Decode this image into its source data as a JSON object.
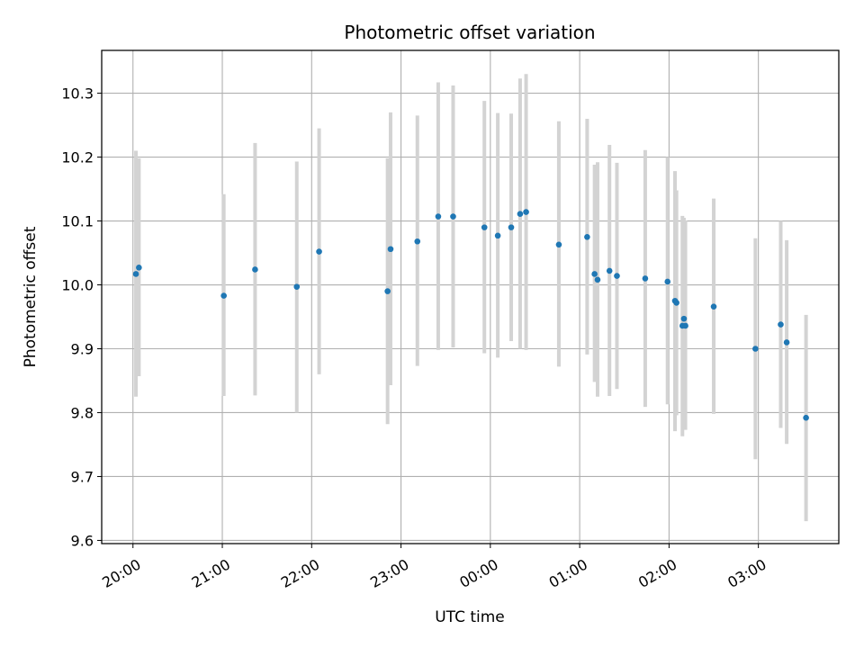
{
  "chart_data": {
    "type": "scatter",
    "title": "Photometric offset variation",
    "xlabel": "UTC time",
    "ylabel": "Photometric offset",
    "x_ticks": [
      "20:00",
      "21:00",
      "22:00",
      "23:00",
      "00:00",
      "01:00",
      "02:00",
      "03:00"
    ],
    "x_tick_hours": [
      0,
      1,
      2,
      3,
      4,
      5,
      6,
      7
    ],
    "x_range_hours": [
      -0.35,
      7.9
    ],
    "y_ticks": [
      "9.6",
      "9.7",
      "9.8",
      "9.9",
      "10.0",
      "10.1",
      "10.2",
      "10.3"
    ],
    "ylim": [
      9.595,
      10.367
    ],
    "grid": true,
    "colors": {
      "point": "#1f77b4",
      "errorbar": "#d3d3d3",
      "grid": "#b0b0b0",
      "axes": "#000000"
    },
    "points": [
      {
        "x": "20:02",
        "y": 10.017,
        "ylow": 9.825,
        "yhigh": 10.21
      },
      {
        "x": "20:04",
        "y": 10.027,
        "ylow": 9.857,
        "yhigh": 10.198
      },
      {
        "x": "21:01",
        "y": 9.983,
        "ylow": 9.826,
        "yhigh": 10.142
      },
      {
        "x": "21:22",
        "y": 10.024,
        "ylow": 9.827,
        "yhigh": 10.222
      },
      {
        "x": "21:50",
        "y": 9.997,
        "ylow": 9.8,
        "yhigh": 10.193
      },
      {
        "x": "22:05",
        "y": 10.052,
        "ylow": 9.86,
        "yhigh": 10.245
      },
      {
        "x": "22:51",
        "y": 9.99,
        "ylow": 9.782,
        "yhigh": 10.198
      },
      {
        "x": "22:53",
        "y": 10.056,
        "ylow": 9.843,
        "yhigh": 10.27
      },
      {
        "x": "23:11",
        "y": 10.068,
        "ylow": 9.873,
        "yhigh": 10.265
      },
      {
        "x": "23:25",
        "y": 10.107,
        "ylow": 9.898,
        "yhigh": 10.317
      },
      {
        "x": "23:35",
        "y": 10.107,
        "ylow": 9.902,
        "yhigh": 10.312
      },
      {
        "x": "23:56",
        "y": 10.09,
        "ylow": 9.893,
        "yhigh": 10.288
      },
      {
        "x": "00:05",
        "y": 10.077,
        "ylow": 9.886,
        "yhigh": 10.269
      },
      {
        "x": "00:14",
        "y": 10.09,
        "ylow": 9.912,
        "yhigh": 10.268
      },
      {
        "x": "00:20",
        "y": 10.111,
        "ylow": 9.9,
        "yhigh": 10.323
      },
      {
        "x": "00:24",
        "y": 10.114,
        "ylow": 9.898,
        "yhigh": 10.33
      },
      {
        "x": "00:46",
        "y": 10.063,
        "ylow": 9.872,
        "yhigh": 10.256
      },
      {
        "x": "01:05",
        "y": 10.075,
        "ylow": 9.891,
        "yhigh": 10.26
      },
      {
        "x": "01:10",
        "y": 10.017,
        "ylow": 9.848,
        "yhigh": 10.188
      },
      {
        "x": "01:12",
        "y": 10.008,
        "ylow": 9.825,
        "yhigh": 10.192
      },
      {
        "x": "01:20",
        "y": 10.022,
        "ylow": 9.826,
        "yhigh": 10.219
      },
      {
        "x": "01:25",
        "y": 10.014,
        "ylow": 9.837,
        "yhigh": 10.191
      },
      {
        "x": "01:44",
        "y": 10.01,
        "ylow": 9.809,
        "yhigh": 10.211
      },
      {
        "x": "01:59",
        "y": 10.005,
        "ylow": 9.813,
        "yhigh": 10.2
      },
      {
        "x": "02:04",
        "y": 9.975,
        "ylow": 9.771,
        "yhigh": 10.178
      },
      {
        "x": "02:05",
        "y": 9.972,
        "ylow": 9.796,
        "yhigh": 10.148
      },
      {
        "x": "02:09",
        "y": 9.936,
        "ylow": 9.763,
        "yhigh": 10.108
      },
      {
        "x": "02:10",
        "y": 9.947,
        "ylow": 9.787,
        "yhigh": 10.105
      },
      {
        "x": "02:11",
        "y": 9.936,
        "ylow": 9.773,
        "yhigh": 10.101
      },
      {
        "x": "02:30",
        "y": 9.966,
        "ylow": 9.798,
        "yhigh": 10.135
      },
      {
        "x": "02:58",
        "y": 9.9,
        "ylow": 9.727,
        "yhigh": 10.073
      },
      {
        "x": "03:15",
        "y": 9.938,
        "ylow": 9.776,
        "yhigh": 10.1
      },
      {
        "x": "03:19",
        "y": 9.91,
        "ylow": 9.751,
        "yhigh": 10.07
      },
      {
        "x": "03:32",
        "y": 9.792,
        "ylow": 9.63,
        "yhigh": 9.953
      }
    ]
  }
}
